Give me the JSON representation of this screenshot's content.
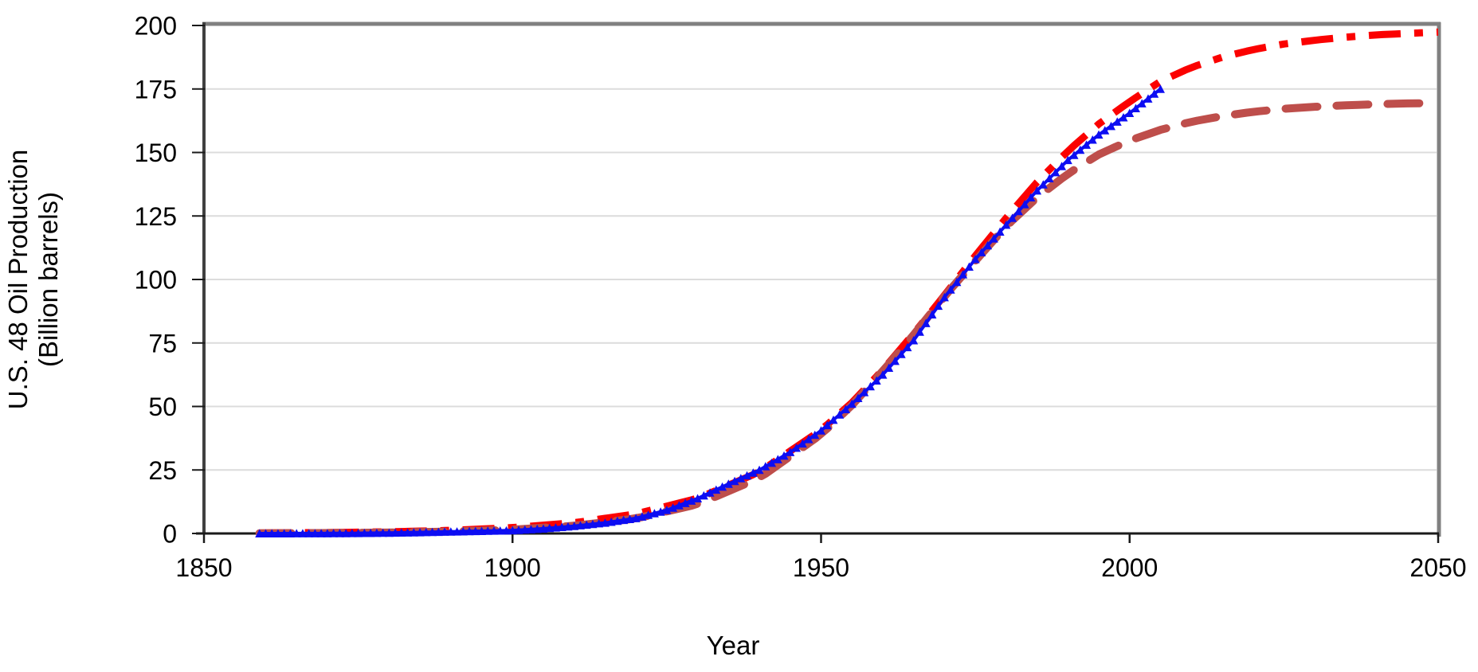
{
  "chart_data": {
    "type": "scatter",
    "title": "",
    "xlabel": "Year",
    "ylabel_lines": [
      "U.S. 48 Oil Production",
      "(Billion barrels)"
    ],
    "xlim": [
      1850,
      2050
    ],
    "ylim": [
      0,
      200
    ],
    "x_ticks": [
      "1850",
      "1900",
      "1950",
      "2000",
      "2050"
    ],
    "x_tick_values": [
      1850,
      1900,
      1950,
      2000,
      2050
    ],
    "y_ticks": [
      "0",
      "25",
      "50",
      "75",
      "100",
      "125",
      "150",
      "175",
      "200"
    ],
    "y_tick_values": [
      0,
      25,
      50,
      75,
      100,
      125,
      150,
      175,
      200
    ],
    "grid": "horizontal-light",
    "legend": "none",
    "colors": {
      "data_markers": "#0d0df2",
      "fit_high": "#fb0100",
      "fit_low": "#be4e4b",
      "gridline": "#dcdcdc",
      "plot_border": "#808080",
      "axis_line": "#404040",
      "text": "#000000",
      "background": "#ffffff"
    },
    "series": [
      {
        "id": "cumulative-production-data",
        "type": "scatter",
        "marker": "triangle-up",
        "marker_interval_years": 1,
        "x_start": 1859,
        "x_end": 2005,
        "color": "#0d0df2",
        "points": [
          [
            1859,
            0
          ],
          [
            1860,
            0.005
          ],
          [
            1865,
            0.02
          ],
          [
            1870,
            0.05
          ],
          [
            1875,
            0.12
          ],
          [
            1880,
            0.25
          ],
          [
            1885,
            0.45
          ],
          [
            1890,
            0.7
          ],
          [
            1895,
            0.95
          ],
          [
            1900,
            1.2
          ],
          [
            1905,
            1.9
          ],
          [
            1910,
            2.9
          ],
          [
            1915,
            4.2
          ],
          [
            1920,
            6.0
          ],
          [
            1925,
            9.2
          ],
          [
            1930,
            13.8
          ],
          [
            1935,
            19.5
          ],
          [
            1940,
            25.0
          ],
          [
            1945,
            32.0
          ],
          [
            1950,
            40.5
          ],
          [
            1955,
            51.0
          ],
          [
            1960,
            62.5
          ],
          [
            1965,
            76.0
          ],
          [
            1970,
            93.0
          ],
          [
            1975,
            108.0
          ],
          [
            1980,
            121.5
          ],
          [
            1985,
            135.0
          ],
          [
            1990,
            147.0
          ],
          [
            1995,
            157.0
          ],
          [
            2000,
            165.5
          ],
          [
            2005,
            175.0
          ]
        ]
      },
      {
        "id": "logistic-fit-high",
        "type": "line",
        "dash": "dash-dot",
        "x_start": 1859,
        "x_end": 2050,
        "color": "#fb0100",
        "asymptote": 200,
        "points": [
          [
            1859,
            0.18
          ],
          [
            1870,
            0.36
          ],
          [
            1880,
            0.66
          ],
          [
            1890,
            1.2
          ],
          [
            1900,
            2.3
          ],
          [
            1910,
            4.2
          ],
          [
            1920,
            7.7
          ],
          [
            1930,
            13.8
          ],
          [
            1940,
            24.2
          ],
          [
            1950,
            40.7
          ],
          [
            1955,
            51.5
          ],
          [
            1960,
            64.4
          ],
          [
            1965,
            78.7
          ],
          [
            1970,
            93.8
          ],
          [
            1975,
            109.3
          ],
          [
            1980,
            124.3
          ],
          [
            1985,
            138.3
          ],
          [
            1990,
            150.6
          ],
          [
            1995,
            161.2
          ],
          [
            2000,
            170.0
          ],
          [
            2005,
            178.0
          ],
          [
            2010,
            183.5
          ],
          [
            2015,
            187.5
          ],
          [
            2020,
            190.5
          ],
          [
            2025,
            192.7
          ],
          [
            2030,
            194.2
          ],
          [
            2035,
            195.4
          ],
          [
            2040,
            196.3
          ],
          [
            2045,
            196.9
          ],
          [
            2050,
            197.4
          ]
        ]
      },
      {
        "id": "logistic-fit-low",
        "type": "line",
        "dash": "long-dash",
        "x_start": 1859,
        "x_end": 2050,
        "color": "#be4e4b",
        "asymptote": 170,
        "points": [
          [
            1859,
            0.08
          ],
          [
            1870,
            0.18
          ],
          [
            1880,
            0.36
          ],
          [
            1890,
            0.73
          ],
          [
            1900,
            1.5
          ],
          [
            1910,
            3.0
          ],
          [
            1920,
            5.9
          ],
          [
            1930,
            11.5
          ],
          [
            1940,
            21.8
          ],
          [
            1950,
            39.0
          ],
          [
            1955,
            50.5
          ],
          [
            1960,
            63.9
          ],
          [
            1965,
            78.2
          ],
          [
            1970,
            93.4
          ],
          [
            1975,
            107.3
          ],
          [
            1980,
            121.0
          ],
          [
            1985,
            132.3
          ],
          [
            1990,
            141.6
          ],
          [
            1995,
            149.2
          ],
          [
            2000,
            154.7
          ],
          [
            2005,
            158.9
          ],
          [
            2010,
            162.1
          ],
          [
            2015,
            164.3
          ],
          [
            2020,
            166.0
          ],
          [
            2025,
            167.2
          ],
          [
            2030,
            168.0
          ],
          [
            2035,
            168.6
          ],
          [
            2040,
            169.0
          ],
          [
            2045,
            169.3
          ],
          [
            2050,
            169.5
          ]
        ]
      }
    ]
  }
}
